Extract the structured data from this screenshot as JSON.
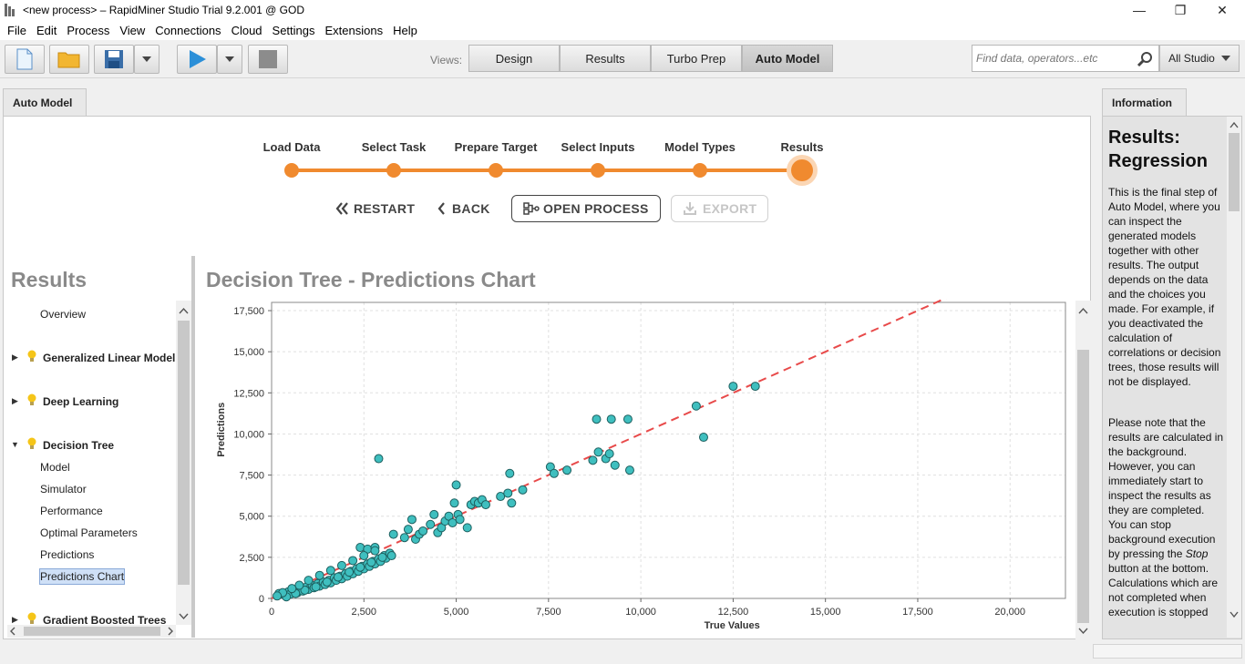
{
  "window": {
    "title": "<new process> – RapidMiner Studio Trial 9.2.001 @ GOD",
    "minimize": "—",
    "restore": "❐",
    "close": "✕"
  },
  "menu": [
    {
      "label": "File"
    },
    {
      "label": "Edit"
    },
    {
      "label": "Process"
    },
    {
      "label": "View"
    },
    {
      "label": "Connections"
    },
    {
      "label": "Cloud"
    },
    {
      "label": "Settings"
    },
    {
      "label": "Extensions"
    },
    {
      "label": "Help"
    }
  ],
  "toolbar": {
    "views_label": "Views:",
    "views": [
      "Design",
      "Results",
      "Turbo Prep",
      "Auto Model"
    ],
    "active_view": "Auto Model",
    "search_placeholder": "Find data, operators...etc",
    "scope": "All Studio",
    "colors": {
      "run": "#2b8fd8",
      "folder": "#f2b631"
    }
  },
  "panel_tab": "Auto Model",
  "info_tab": "Information",
  "stepper": {
    "steps": [
      "Load Data",
      "Select Task",
      "Prepare Target",
      "Select Inputs",
      "Model Types",
      "Results"
    ],
    "current": 5,
    "color": "#f08a2f"
  },
  "actions": {
    "restart": "RESTART",
    "back": "BACK",
    "open_process": "OPEN PROCESS",
    "export": "EXPORT"
  },
  "results_nav": {
    "heading": "Results",
    "overview": "Overview",
    "glm": "Generalized Linear Model",
    "deep_learning": "Deep Learning",
    "decision_tree": "Decision Tree",
    "dt_items": [
      "Model",
      "Simulator",
      "Performance",
      "Optimal Parameters",
      "Predictions",
      "Predictions Chart"
    ],
    "gbt": "Gradient Boosted Trees"
  },
  "chart_title": "Decision Tree - Predictions Chart",
  "chart_data": {
    "type": "scatter",
    "xlabel": "True Values",
    "ylabel": "Predictions",
    "xlim": [
      0,
      21500
    ],
    "ylim": [
      0,
      18000
    ],
    "xticks": [
      0,
      2500,
      5000,
      7500,
      10000,
      12500,
      15000,
      17500,
      20000
    ],
    "yticks": [
      0,
      2500,
      5000,
      7500,
      10000,
      12500,
      15000,
      17500
    ],
    "xtick_labels": [
      "0",
      "2,500",
      "5,000",
      "7,500",
      "10,000",
      "12,500",
      "15,000",
      "17,500",
      "20,000"
    ],
    "ytick_labels": [
      "0",
      "2,500",
      "5,000",
      "7,500",
      "10,000",
      "12,500",
      "15,000",
      "17,500"
    ],
    "grid": true,
    "point_color": "#3fbfbf",
    "reference_line": {
      "from": [
        0,
        0
      ],
      "to": [
        19300,
        19300
      ],
      "color": "#e84a4a",
      "style": "dashed"
    },
    "points": [
      [
        200,
        300
      ],
      [
        350,
        200
      ],
      [
        450,
        400
      ],
      [
        500,
        250
      ],
      [
        600,
        500
      ],
      [
        700,
        350
      ],
      [
        800,
        600
      ],
      [
        850,
        450
      ],
      [
        950,
        700
      ],
      [
        1000,
        550
      ],
      [
        1100,
        800
      ],
      [
        1150,
        650
      ],
      [
        1250,
        900
      ],
      [
        1300,
        750
      ],
      [
        1400,
        1000
      ],
      [
        1450,
        850
      ],
      [
        1550,
        1100
      ],
      [
        1600,
        950
      ],
      [
        1700,
        1250
      ],
      [
        1750,
        1100
      ],
      [
        1850,
        1350
      ],
      [
        1900,
        1200
      ],
      [
        2000,
        1500
      ],
      [
        2050,
        1350
      ],
      [
        2150,
        1650
      ],
      [
        2200,
        1500
      ],
      [
        2300,
        1800
      ],
      [
        2350,
        1650
      ],
      [
        2450,
        1950
      ],
      [
        2500,
        1800
      ],
      [
        2600,
        2100
      ],
      [
        2650,
        1950
      ],
      [
        2750,
        2250
      ],
      [
        2800,
        2100
      ],
      [
        2900,
        2400
      ],
      [
        2950,
        2250
      ],
      [
        3050,
        2600
      ],
      [
        3100,
        2450
      ],
      [
        3200,
        2750
      ],
      [
        3250,
        2600
      ],
      [
        400,
        100
      ],
      [
        650,
        300
      ],
      [
        900,
        500
      ],
      [
        1200,
        700
      ],
      [
        1500,
        1000
      ],
      [
        1800,
        1300
      ],
      [
        2100,
        1600
      ],
      [
        2400,
        1900
      ],
      [
        2700,
        2200
      ],
      [
        3000,
        2500
      ],
      [
        2400,
        3100
      ],
      [
        2600,
        3000
      ],
      [
        2800,
        3100
      ],
      [
        2900,
        8500
      ],
      [
        3300,
        3900
      ],
      [
        3600,
        3700
      ],
      [
        3700,
        4200
      ],
      [
        3800,
        4800
      ],
      [
        3900,
        3600
      ],
      [
        4000,
        3900
      ],
      [
        4100,
        4100
      ],
      [
        4300,
        4500
      ],
      [
        4400,
        5100
      ],
      [
        4500,
        4000
      ],
      [
        4600,
        4300
      ],
      [
        4700,
        4700
      ],
      [
        4800,
        5000
      ],
      [
        4900,
        4600
      ],
      [
        4950,
        5800
      ],
      [
        5000,
        6900
      ],
      [
        5050,
        5100
      ],
      [
        5100,
        4800
      ],
      [
        5300,
        4300
      ],
      [
        5400,
        5700
      ],
      [
        5500,
        5900
      ],
      [
        5600,
        5800
      ],
      [
        5700,
        6000
      ],
      [
        5800,
        5700
      ],
      [
        6200,
        6200
      ],
      [
        6400,
        6400
      ],
      [
        6450,
        7600
      ],
      [
        6500,
        5800
      ],
      [
        6800,
        6600
      ],
      [
        7550,
        8000
      ],
      [
        7650,
        7600
      ],
      [
        8000,
        7800
      ],
      [
        8700,
        8400
      ],
      [
        8800,
        10900
      ],
      [
        8850,
        8900
      ],
      [
        9050,
        8500
      ],
      [
        9150,
        8800
      ],
      [
        9200,
        10900
      ],
      [
        9300,
        8100
      ],
      [
        9650,
        10900
      ],
      [
        9700,
        7800
      ],
      [
        11500,
        11700
      ],
      [
        11700,
        9800
      ],
      [
        12500,
        12900
      ],
      [
        13100,
        12900
      ],
      [
        1000,
        1100
      ],
      [
        1300,
        1400
      ],
      [
        1600,
        1700
      ],
      [
        1900,
        2000
      ],
      [
        2200,
        2300
      ],
      [
        2500,
        2600
      ],
      [
        2800,
        2900
      ],
      [
        750,
        800
      ],
      [
        550,
        600
      ],
      [
        300,
        350
      ],
      [
        150,
        150
      ]
    ]
  },
  "info": {
    "title": "Results: Regression",
    "para1": "This is the final step of Auto Model, where you can inspect the generated models together with other results. The output depends on the data and the choices you made. For example, if you deactivated the calculation of correlations or decision trees, those results will not be displayed.",
    "para2_before": "Please note that the results are calculated in the background. However, you can immediately start to inspect the results as they are completed. You can stop background execution by pressing the ",
    "para2_em": "Stop",
    "para2_after": " button at the bottom. Calculations which are not completed when execution is stopped will not be available. Y"
  }
}
